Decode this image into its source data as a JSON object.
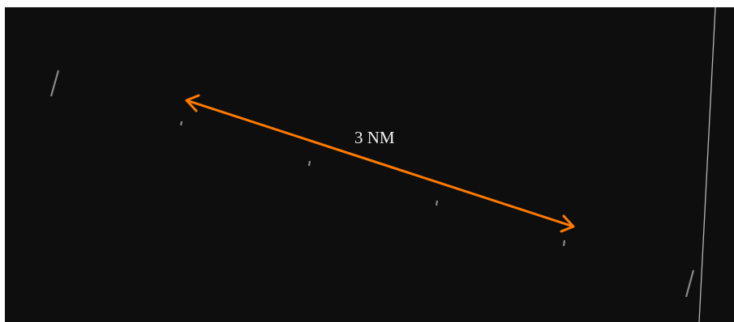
{
  "scope": {
    "background_color": "#0e0e0e",
    "measure_color": "#ff7a00",
    "tick_color": "#8a8a8a",
    "boundary_color": "#b5b5b5"
  },
  "measure": {
    "label": "3 NM",
    "distance_nm": 3,
    "arrow_style": "double-headed"
  },
  "icons": {
    "measure": "double-arrow-icon",
    "tick": "range-tick-icon"
  }
}
